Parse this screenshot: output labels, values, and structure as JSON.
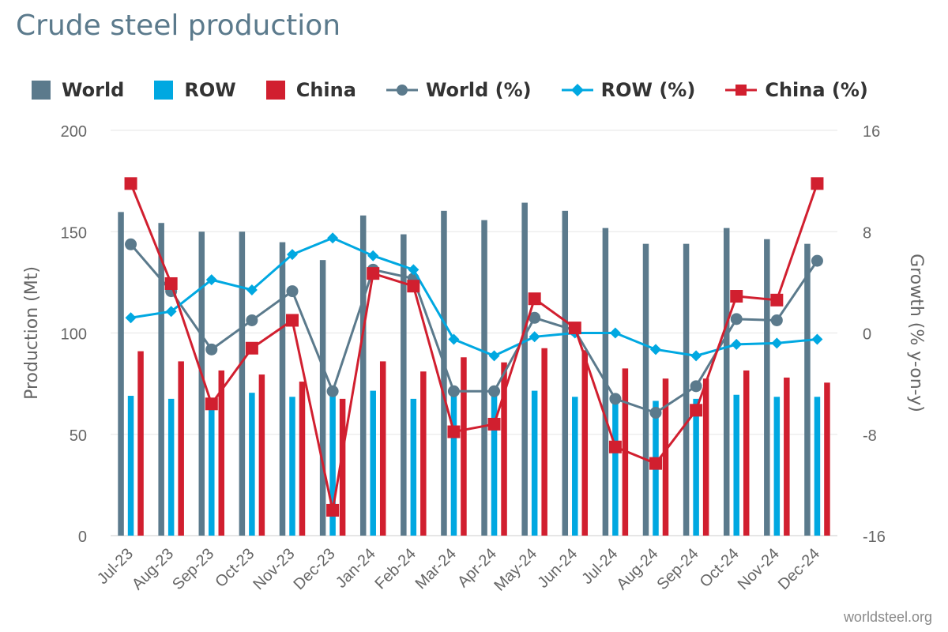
{
  "title": "Crude steel production",
  "watermark": "worldsteel.org",
  "legend": {
    "world": "World",
    "row": "ROW",
    "china": "China",
    "world_pct": "World (%)",
    "row_pct": "ROW (%)",
    "china_pct": "China (%)"
  },
  "colors": {
    "world": "#5b7a8c",
    "row": "#00a8e1",
    "china": "#d11f2f",
    "grid": "#e6e6e6",
    "axis_text": "#666666"
  },
  "chart_data": {
    "type": "bar",
    "categories": [
      "Jul-23",
      "Aug-23",
      "Sep-23",
      "Oct-23",
      "Nov-23",
      "Dec-23",
      "Jan-24",
      "Feb-24",
      "Mar-24",
      "Apr-24",
      "May-24",
      "Jun-24",
      "Jul-24",
      "Aug-24",
      "Sep-24",
      "Oct-24",
      "Nov-24",
      "Dec-24"
    ],
    "ylabel": "Production (Mt)",
    "y2label": "Growth (% y-on-y)",
    "ylim": [
      0,
      200
    ],
    "y2lim": [
      -16,
      16
    ],
    "yticks": [
      0,
      50,
      100,
      150,
      200
    ],
    "y2ticks": [
      -16,
      -8,
      0,
      8,
      16
    ],
    "grid": true,
    "legend_position": "top",
    "series": [
      {
        "name": "World",
        "kind": "bar",
        "axis": "left",
        "values": [
          159.7,
          154.3,
          150.0,
          150.0,
          144.8,
          136.0,
          158.0,
          148.7,
          160.3,
          155.7,
          164.3,
          160.3,
          151.8,
          144.0,
          144.0,
          151.8,
          146.3,
          144.0
        ]
      },
      {
        "name": "ROW",
        "kind": "bar",
        "axis": "left",
        "values": [
          69.0,
          67.5,
          66.0,
          70.5,
          68.5,
          69.0,
          71.5,
          67.5,
          72.0,
          69.5,
          71.5,
          68.5,
          70.0,
          66.5,
          67.5,
          69.5,
          68.5,
          68.5
        ]
      },
      {
        "name": "China",
        "kind": "bar",
        "axis": "left",
        "values": [
          91.0,
          86.0,
          81.5,
          79.5,
          76.0,
          67.5,
          86.0,
          81.0,
          88.0,
          85.5,
          92.5,
          91.5,
          82.5,
          77.5,
          77.5,
          81.5,
          78.0,
          75.5
        ]
      },
      {
        "name": "World (%)",
        "kind": "line",
        "axis": "right",
        "marker": "circle",
        "values": [
          7.0,
          3.3,
          -1.3,
          1.0,
          3.3,
          -4.6,
          5.0,
          4.3,
          -4.6,
          -4.6,
          1.2,
          0.2,
          -5.2,
          -6.3,
          -4.2,
          1.1,
          1.0,
          5.7
        ]
      },
      {
        "name": "ROW (%)",
        "kind": "line",
        "axis": "right",
        "marker": "diamond",
        "values": [
          1.2,
          1.7,
          4.2,
          3.4,
          6.2,
          7.5,
          6.1,
          5.0,
          -0.5,
          -1.8,
          -0.3,
          0.0,
          0.0,
          -1.3,
          -1.8,
          -0.9,
          -0.8,
          -0.5
        ]
      },
      {
        "name": "China (%)",
        "kind": "line",
        "axis": "right",
        "marker": "square",
        "values": [
          11.8,
          3.9,
          -5.6,
          -1.2,
          1.0,
          -14.0,
          4.7,
          3.7,
          -7.8,
          -7.2,
          2.7,
          0.4,
          -9.0,
          -10.3,
          -6.1,
          2.9,
          2.6,
          11.8
        ]
      }
    ]
  }
}
